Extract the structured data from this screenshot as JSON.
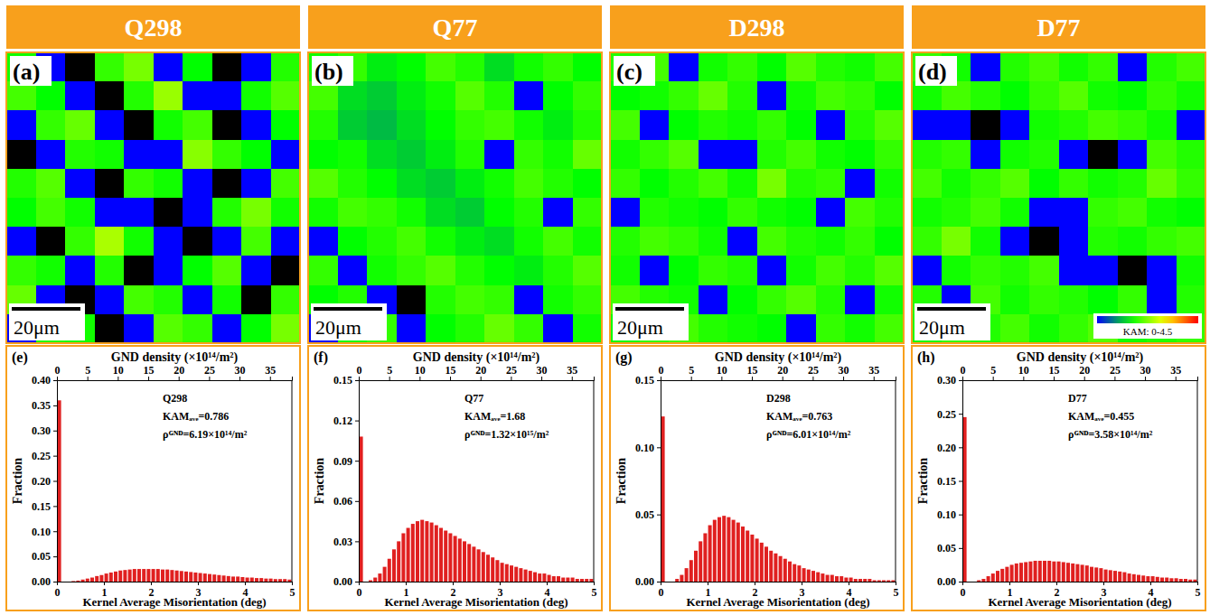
{
  "chart_data": [
    {
      "type": "heatmap",
      "title": "Q298",
      "label": "(a)",
      "scale_bar": "20μm",
      "color_range": [
        0,
        4.5
      ],
      "cells": [
        [
          1.6,
          0,
          null,
          1.8,
          2.2,
          0,
          1.5,
          null,
          0,
          1.7
        ],
        [
          1.9,
          1.5,
          0,
          null,
          1.7,
          2.4,
          0,
          0,
          1.6,
          2.0
        ],
        [
          0,
          1.8,
          2.1,
          0,
          null,
          1.6,
          1.9,
          null,
          0,
          1.5
        ],
        [
          null,
          0,
          1.7,
          1.6,
          0,
          0,
          2.3,
          1.8,
          1.5,
          0
        ],
        [
          1.7,
          2.0,
          0,
          null,
          1.8,
          1.6,
          0,
          null,
          0,
          1.9
        ],
        [
          1.5,
          1.9,
          1.6,
          0,
          0,
          null,
          0,
          1.7,
          2.2,
          1.6
        ],
        [
          0,
          null,
          1.8,
          2.5,
          1.6,
          0,
          null,
          0,
          1.9,
          0
        ],
        [
          1.8,
          1.6,
          0,
          1.7,
          null,
          0,
          1.5,
          2.0,
          0,
          null
        ],
        [
          2.1,
          0,
          null,
          0,
          1.9,
          1.7,
          0,
          1.6,
          null,
          1.8
        ],
        [
          0,
          1.7,
          1.6,
          null,
          0,
          2.0,
          1.8,
          0,
          1.5,
          2.2
        ]
      ]
    },
    {
      "type": "heatmap",
      "title": "Q77",
      "label": "(b)",
      "scale_bar": "20μm",
      "color_range": [
        0,
        4.5
      ],
      "cells": [
        [
          1.6,
          1.8,
          1.4,
          1.5,
          1.9,
          1.7,
          1.3,
          1.6,
          1.8,
          1.5
        ],
        [
          1.9,
          1.3,
          1.2,
          1.4,
          1.6,
          2.0,
          1.7,
          0,
          1.5,
          1.8
        ],
        [
          1.7,
          1.2,
          1.1,
          1.3,
          1.5,
          1.8,
          1.9,
          1.6,
          1.4,
          1.7
        ],
        [
          1.5,
          1.6,
          1.3,
          1.2,
          1.4,
          1.7,
          0,
          1.8,
          1.6,
          2.1
        ],
        [
          2.0,
          1.7,
          1.5,
          1.3,
          1.2,
          1.4,
          1.6,
          1.9,
          1.7,
          1.5
        ],
        [
          1.6,
          1.9,
          1.8,
          1.6,
          1.3,
          1.2,
          1.5,
          1.7,
          0,
          1.8
        ],
        [
          0,
          1.5,
          1.7,
          1.9,
          1.6,
          1.4,
          1.3,
          1.6,
          1.9,
          1.6
        ],
        [
          1.8,
          0,
          1.6,
          1.8,
          2.0,
          1.7,
          1.5,
          1.4,
          1.7,
          2.0
        ],
        [
          1.5,
          1.7,
          0,
          null,
          1.7,
          1.9,
          1.8,
          0,
          1.6,
          1.8
        ],
        [
          0,
          1.6,
          1.8,
          0,
          1.5,
          1.7,
          2.1,
          1.8,
          0,
          1.6
        ]
      ]
    },
    {
      "type": "heatmap",
      "title": "D298",
      "label": "(c)",
      "scale_bar": "20μm",
      "color_range": [
        0,
        4.5
      ],
      "cells": [
        [
          1.7,
          1.9,
          0,
          1.6,
          1.8,
          1.5,
          2.0,
          1.7,
          1.6,
          1.9
        ],
        [
          1.5,
          1.6,
          1.8,
          2.1,
          1.7,
          0,
          1.6,
          1.9,
          1.8,
          1.5
        ],
        [
          1.9,
          0,
          1.5,
          1.7,
          1.6,
          1.8,
          1.5,
          0,
          1.7,
          2.0
        ],
        [
          1.6,
          1.8,
          2.0,
          0,
          0,
          1.7,
          1.9,
          1.6,
          1.5,
          1.8
        ],
        [
          1.8,
          1.5,
          1.7,
          1.9,
          1.6,
          2.2,
          1.7,
          1.8,
          0,
          1.6
        ],
        [
          0,
          1.7,
          1.6,
          1.5,
          1.8,
          1.6,
          1.5,
          0,
          1.9,
          1.7
        ],
        [
          1.7,
          1.9,
          1.8,
          1.6,
          0,
          1.9,
          1.7,
          1.6,
          1.8,
          1.5
        ],
        [
          1.6,
          0,
          1.5,
          1.8,
          1.7,
          0,
          1.6,
          1.9,
          1.7,
          2.0
        ],
        [
          1.9,
          1.7,
          1.6,
          0,
          1.5,
          1.8,
          2.0,
          1.7,
          0,
          1.6
        ],
        [
          1.5,
          1.8,
          1.9,
          1.7,
          1.6,
          1.5,
          0,
          1.8,
          1.6,
          1.9
        ]
      ]
    },
    {
      "type": "heatmap",
      "title": "D77",
      "label": "(d)",
      "scale_bar": "20μm",
      "color_range": [
        0,
        4.5
      ],
      "colorbar_label": "KAM: 0-4.5",
      "cells": [
        [
          1.8,
          1.6,
          0,
          1.7,
          1.9,
          1.6,
          1.8,
          0,
          1.7,
          1.9
        ],
        [
          1.6,
          1.9,
          1.7,
          1.5,
          1.8,
          2.0,
          1.6,
          1.5,
          1.8,
          1.6
        ],
        [
          0,
          0,
          null,
          0,
          1.6,
          1.7,
          1.9,
          1.8,
          1.6,
          0
        ],
        [
          1.7,
          1.8,
          0,
          1.6,
          1.7,
          0,
          null,
          0,
          1.9,
          1.7
        ],
        [
          1.9,
          1.6,
          1.8,
          2.0,
          1.5,
          1.8,
          1.6,
          1.7,
          2.1,
          1.8
        ],
        [
          1.6,
          1.7,
          1.9,
          1.6,
          0,
          0,
          1.8,
          1.9,
          1.6,
          1.5
        ],
        [
          1.8,
          2.2,
          1.6,
          0,
          null,
          0,
          1.7,
          1.6,
          1.8,
          1.9
        ],
        [
          0,
          1.6,
          1.8,
          1.7,
          1.9,
          0,
          0,
          null,
          0,
          1.6
        ],
        [
          1.7,
          0,
          1.9,
          1.6,
          1.8,
          1.7,
          1.5,
          1.8,
          0,
          1.7
        ],
        [
          1.6,
          1.8,
          1.7,
          1.9,
          1.6,
          1.8,
          2.0,
          1.6,
          1.7,
          1.8
        ]
      ]
    },
    {
      "type": "histogram",
      "label": "(e)",
      "color": "#e02020",
      "x_label": "Kernel Average Misorientation (deg)",
      "y_label": "Fraction",
      "x2_label": "GND density (×10¹⁴/m²)",
      "annotations": [
        "Q298",
        "KAMₐᵥₑ=0.786",
        "ρᴳᴺᴰ=6.19×10¹⁴/m²"
      ],
      "xlim": [
        0,
        5
      ],
      "xticks": [
        0,
        1,
        2,
        3,
        4,
        5
      ],
      "x2lim": [
        0,
        38.6
      ],
      "x2ticks": [
        0,
        5,
        10,
        15,
        20,
        25,
        30,
        35
      ],
      "ylim": [
        0,
        0.4
      ],
      "yticks": [
        {
          "value": 0,
          "label": "0.00"
        },
        {
          "value": 0.05,
          "label": "0.05"
        },
        {
          "value": 0.1,
          "label": "0.10"
        },
        {
          "value": 0.15,
          "label": "0.15"
        },
        {
          "value": 0.2,
          "label": "0.20"
        },
        {
          "value": 0.25,
          "label": "0.25"
        },
        {
          "value": 0.3,
          "label": "0.30"
        },
        {
          "value": 0.35,
          "label": "0.35"
        },
        {
          "value": 0.4,
          "label": "0.40"
        }
      ],
      "bins": [
        0,
        0.1,
        0.2,
        0.3,
        0.4,
        0.5,
        0.6,
        0.7,
        0.8,
        0.9,
        1.0,
        1.1,
        1.2,
        1.3,
        1.4,
        1.5,
        1.6,
        1.7,
        1.8,
        1.9,
        2.0,
        2.1,
        2.2,
        2.3,
        2.4,
        2.5,
        2.6,
        2.7,
        2.8,
        2.9,
        3.0,
        3.1,
        3.2,
        3.3,
        3.4,
        3.5,
        3.6,
        3.7,
        3.8,
        3.9,
        4.0,
        4.1,
        4.2,
        4.3,
        4.4,
        4.5,
        4.6,
        4.7,
        4.8,
        4.9,
        5.0
      ],
      "values": [
        0.36,
        0,
        0,
        0.001,
        0.002,
        0.004,
        0.006,
        0.008,
        0.011,
        0.013,
        0.016,
        0.018,
        0.02,
        0.022,
        0.023,
        0.024,
        0.025,
        0.025,
        0.025,
        0.025,
        0.025,
        0.025,
        0.024,
        0.024,
        0.023,
        0.022,
        0.021,
        0.02,
        0.019,
        0.018,
        0.017,
        0.016,
        0.015,
        0.014,
        0.013,
        0.012,
        0.011,
        0.01,
        0.01,
        0.009,
        0.008,
        0.008,
        0.007,
        0.007,
        0.006,
        0.006,
        0.005,
        0.005,
        0.005,
        0.004
      ]
    },
    {
      "type": "histogram",
      "label": "(f)",
      "color": "#e02020",
      "x_label": "Kernel Average Misorientation (deg)",
      "y_label": "Fraction",
      "x2_label": "GND density (×10¹⁴/m²)",
      "annotations": [
        "Q77",
        "KAMₐᵥₑ=1.68",
        "ρᴳᴺᴰ=1.32×10¹⁵/m²"
      ],
      "xlim": [
        0,
        5
      ],
      "xticks": [
        0,
        1,
        2,
        3,
        4,
        5
      ],
      "x2lim": [
        0,
        38.6
      ],
      "x2ticks": [
        0,
        5,
        10,
        15,
        20,
        25,
        30,
        35
      ],
      "ylim": [
        0,
        0.15
      ],
      "yticks": [
        {
          "value": 0,
          "label": "0.00"
        },
        {
          "value": 0.03,
          "label": "0.03"
        },
        {
          "value": 0.06,
          "label": "0.06"
        },
        {
          "value": 0.09,
          "label": "0.09"
        },
        {
          "value": 0.12,
          "label": "0.12"
        },
        {
          "value": 0.15,
          "label": "0.15"
        }
      ],
      "bins": [
        0,
        0.1,
        0.2,
        0.3,
        0.4,
        0.5,
        0.6,
        0.7,
        0.8,
        0.9,
        1.0,
        1.1,
        1.2,
        1.3,
        1.4,
        1.5,
        1.6,
        1.7,
        1.8,
        1.9,
        2.0,
        2.1,
        2.2,
        2.3,
        2.4,
        2.5,
        2.6,
        2.7,
        2.8,
        2.9,
        3.0,
        3.1,
        3.2,
        3.3,
        3.4,
        3.5,
        3.6,
        3.7,
        3.8,
        3.9,
        4.0,
        4.1,
        4.2,
        4.3,
        4.4,
        4.5,
        4.6,
        4.7,
        4.8,
        4.9,
        5.0
      ],
      "values": [
        0.108,
        0,
        0.001,
        0.003,
        0.006,
        0.011,
        0.017,
        0.024,
        0.03,
        0.036,
        0.04,
        0.043,
        0.045,
        0.046,
        0.045,
        0.044,
        0.042,
        0.04,
        0.038,
        0.036,
        0.034,
        0.032,
        0.03,
        0.028,
        0.026,
        0.024,
        0.022,
        0.02,
        0.018,
        0.016,
        0.014,
        0.013,
        0.012,
        0.011,
        0.01,
        0.009,
        0.008,
        0.007,
        0.006,
        0.006,
        0.005,
        0.004,
        0.004,
        0.003,
        0.003,
        0.003,
        0.002,
        0.002,
        0.002,
        0.002
      ]
    },
    {
      "type": "histogram",
      "label": "(g)",
      "color": "#e02020",
      "x_label": "Kernel Average Misorientation (deg)",
      "y_label": "Fraction",
      "x2_label": "GND density (×10¹⁴/m²)",
      "annotations": [
        "D298",
        "KAMₐᵥₑ=0.763",
        "ρᴳᴺᴰ=6.01×10¹⁴/m²"
      ],
      "xlim": [
        0,
        5
      ],
      "xticks": [
        0,
        1,
        2,
        3,
        4,
        5
      ],
      "x2lim": [
        0,
        38.6
      ],
      "x2ticks": [
        0,
        5,
        10,
        15,
        20,
        25,
        30,
        35
      ],
      "ylim": [
        0,
        0.15
      ],
      "yticks": [
        {
          "value": 0,
          "label": "0.00"
        },
        {
          "value": 0.05,
          "label": "0.05"
        },
        {
          "value": 0.1,
          "label": "0.10"
        },
        {
          "value": 0.15,
          "label": "0.15"
        }
      ],
      "bins": [
        0,
        0.1,
        0.2,
        0.3,
        0.4,
        0.5,
        0.6,
        0.7,
        0.8,
        0.9,
        1.0,
        1.1,
        1.2,
        1.3,
        1.4,
        1.5,
        1.6,
        1.7,
        1.8,
        1.9,
        2.0,
        2.1,
        2.2,
        2.3,
        2.4,
        2.5,
        2.6,
        2.7,
        2.8,
        2.9,
        3.0,
        3.1,
        3.2,
        3.3,
        3.4,
        3.5,
        3.6,
        3.7,
        3.8,
        3.9,
        4.0,
        4.1,
        4.2,
        4.3,
        4.4,
        4.5,
        4.6,
        4.7,
        4.8,
        4.9,
        5.0
      ],
      "values": [
        0.123,
        0,
        0,
        0.002,
        0.005,
        0.01,
        0.016,
        0.023,
        0.03,
        0.036,
        0.042,
        0.046,
        0.048,
        0.049,
        0.048,
        0.046,
        0.044,
        0.041,
        0.038,
        0.035,
        0.032,
        0.029,
        0.026,
        0.023,
        0.021,
        0.019,
        0.017,
        0.015,
        0.013,
        0.012,
        0.01,
        0.009,
        0.008,
        0.007,
        0.006,
        0.005,
        0.005,
        0.004,
        0.004,
        0.003,
        0.003,
        0.002,
        0.002,
        0.002,
        0.002,
        0.001,
        0.001,
        0.001,
        0.001,
        0.001
      ]
    },
    {
      "type": "histogram",
      "label": "(h)",
      "color": "#e02020",
      "x_label": "Kernel Average Misorientation (deg)",
      "y_label": "Fraction",
      "x2_label": "GND density (×10¹⁴/m²)",
      "annotations": [
        "D77",
        "KAMₐᵥₑ=0.455",
        "ρᴳᴺᴰ=3.58×10¹⁴/m²"
      ],
      "xlim": [
        0,
        5
      ],
      "xticks": [
        0,
        1,
        2,
        3,
        4,
        5
      ],
      "x2lim": [
        0,
        38.6
      ],
      "x2ticks": [
        0,
        5,
        10,
        15,
        20,
        25,
        30,
        35
      ],
      "ylim": [
        0,
        0.3
      ],
      "yticks": [
        {
          "value": 0,
          "label": "0.00"
        },
        {
          "value": 0.05,
          "label": "0.05"
        },
        {
          "value": 0.1,
          "label": "0.10"
        },
        {
          "value": 0.15,
          "label": "0.15"
        },
        {
          "value": 0.2,
          "label": "0.20"
        },
        {
          "value": 0.25,
          "label": "0.25"
        },
        {
          "value": 0.3,
          "label": "0.30"
        }
      ],
      "bins": [
        0,
        0.1,
        0.2,
        0.3,
        0.4,
        0.5,
        0.6,
        0.7,
        0.8,
        0.9,
        1.0,
        1.1,
        1.2,
        1.3,
        1.4,
        1.5,
        1.6,
        1.7,
        1.8,
        1.9,
        2.0,
        2.1,
        2.2,
        2.3,
        2.4,
        2.5,
        2.6,
        2.7,
        2.8,
        2.9,
        3.0,
        3.1,
        3.2,
        3.3,
        3.4,
        3.5,
        3.6,
        3.7,
        3.8,
        3.9,
        4.0,
        4.1,
        4.2,
        4.3,
        4.4,
        4.5,
        4.6,
        4.7,
        4.8,
        4.9,
        5.0
      ],
      "values": [
        0.245,
        0,
        0,
        0.002,
        0.004,
        0.008,
        0.012,
        0.016,
        0.019,
        0.022,
        0.025,
        0.027,
        0.028,
        0.029,
        0.03,
        0.031,
        0.031,
        0.031,
        0.031,
        0.03,
        0.03,
        0.029,
        0.028,
        0.027,
        0.026,
        0.025,
        0.024,
        0.022,
        0.021,
        0.02,
        0.018,
        0.017,
        0.016,
        0.015,
        0.014,
        0.012,
        0.011,
        0.01,
        0.009,
        0.008,
        0.008,
        0.007,
        0.006,
        0.006,
        0.005,
        0.005,
        0.004,
        0.004,
        0.003,
        0.003
      ]
    }
  ]
}
